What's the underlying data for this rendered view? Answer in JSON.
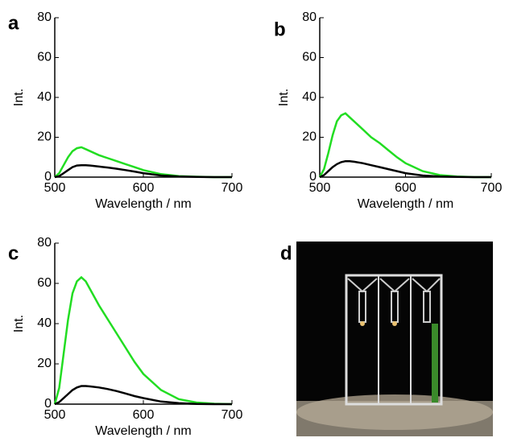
{
  "chart_data": [
    {
      "type": "line",
      "label": "a",
      "xlabel": "Wavelength / nm",
      "ylabel": "Int.",
      "x": [
        500,
        505,
        510,
        515,
        520,
        525,
        530,
        535,
        540,
        550,
        560,
        570,
        580,
        590,
        600,
        620,
        640,
        660,
        680,
        700
      ],
      "series": [
        {
          "color": "#22dd22",
          "values": [
            0,
            2,
            6,
            10,
            13,
            14.5,
            15,
            14,
            13,
            11,
            9.5,
            8,
            6.5,
            5,
            3.5,
            1.5,
            0.5,
            0.2,
            0,
            0
          ]
        },
        {
          "color": "#000000",
          "values": [
            0,
            0.5,
            2,
            3.5,
            5,
            5.8,
            6,
            6,
            5.8,
            5.3,
            4.8,
            4.2,
            3.5,
            2.8,
            2,
            0.8,
            0.3,
            0.1,
            0,
            0
          ]
        }
      ],
      "xlim": [
        500,
        700
      ],
      "xticks": [
        500,
        600,
        700
      ],
      "ylim": [
        0,
        80
      ],
      "yticks": [
        0,
        20,
        40,
        60,
        80
      ]
    },
    {
      "type": "line",
      "label": "b",
      "xlabel": "Wavelength / nm",
      "ylabel": "Int.",
      "x": [
        500,
        505,
        510,
        515,
        520,
        525,
        530,
        535,
        540,
        550,
        560,
        570,
        580,
        590,
        600,
        620,
        640,
        660,
        680,
        700
      ],
      "series": [
        {
          "color": "#22dd22",
          "values": [
            0,
            4,
            12,
            21,
            28,
            31,
            32,
            30,
            28,
            24,
            20,
            17,
            13.5,
            10,
            7,
            3,
            1,
            0.3,
            0,
            0
          ]
        },
        {
          "color": "#000000",
          "values": [
            0,
            1,
            3,
            5,
            6.5,
            7.5,
            8,
            8,
            7.7,
            7,
            6,
            5,
            4,
            3,
            2,
            0.8,
            0.3,
            0.1,
            0,
            0
          ]
        }
      ],
      "xlim": [
        500,
        700
      ],
      "xticks": [
        500,
        600,
        700
      ],
      "ylim": [
        0,
        80
      ],
      "yticks": [
        0,
        20,
        40,
        60,
        80
      ]
    },
    {
      "type": "line",
      "label": "c",
      "xlabel": "Wavelength / nm",
      "ylabel": "Int.",
      "x": [
        500,
        505,
        510,
        515,
        520,
        525,
        530,
        535,
        540,
        550,
        560,
        570,
        580,
        590,
        600,
        620,
        640,
        660,
        680,
        700
      ],
      "series": [
        {
          "color": "#22dd22",
          "values": [
            0,
            8,
            25,
            42,
            55,
            61,
            63,
            61,
            57,
            49,
            42,
            35,
            28,
            21,
            15,
            7,
            2.5,
            0.8,
            0.2,
            0
          ]
        },
        {
          "color": "#000000",
          "values": [
            0,
            1,
            3,
            5,
            7,
            8.3,
            9,
            9,
            8.8,
            8.3,
            7.5,
            6.5,
            5.3,
            4,
            3,
            1.3,
            0.5,
            0.1,
            0,
            0
          ]
        }
      ],
      "xlim": [
        500,
        700
      ],
      "xticks": [
        500,
        600,
        700
      ],
      "ylim": [
        0,
        80
      ],
      "yticks": [
        0,
        20,
        40,
        60,
        80
      ]
    }
  ],
  "photo": {
    "label": "d"
  }
}
